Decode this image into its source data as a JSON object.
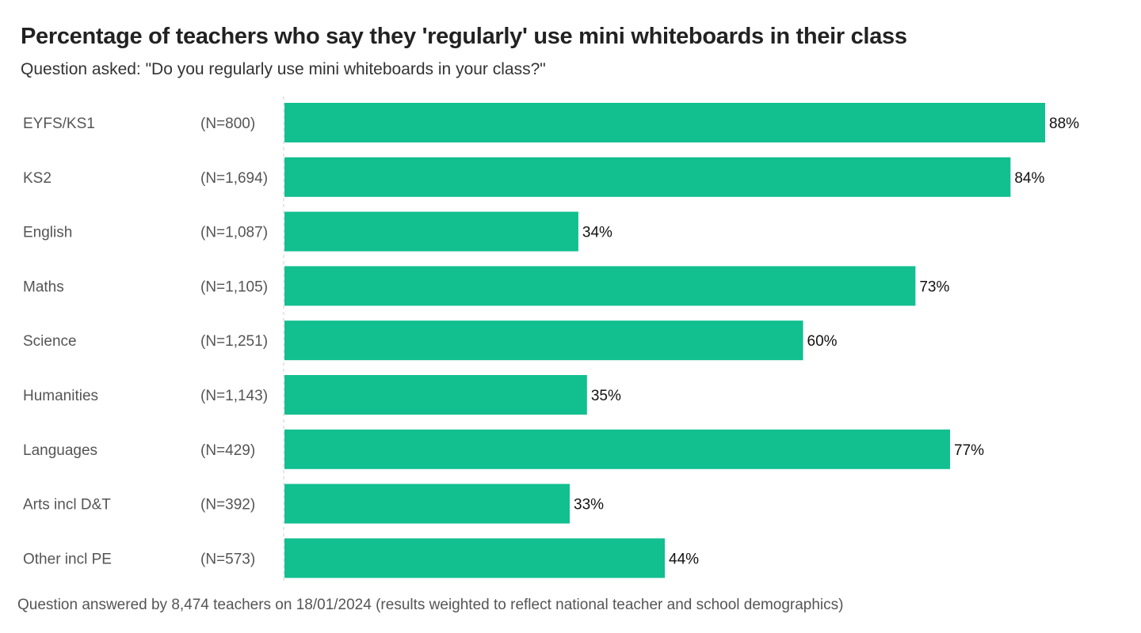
{
  "chart_data": {
    "type": "bar",
    "orientation": "horizontal",
    "title": "Percentage of teachers who say they 'regularly' use mini whiteboards in their class",
    "subtitle": "Question asked: \"Do you regularly use mini whiteboards in your class?\"",
    "footer": "Question answered by 8,474 teachers on 18/01/2024 (results weighted to reflect national teacher and school demographics)",
    "categories": [
      "EYFS/KS1",
      "KS2",
      "English",
      "Maths",
      "Science",
      "Humanities",
      "Languages",
      "Arts incl D&T",
      "Other incl PE"
    ],
    "sample_sizes": [
      "(N=800)",
      "(N=1,694)",
      "(N=1,087)",
      "(N=1,105)",
      "(N=1,251)",
      "(N=1,143)",
      "(N=429)",
      "(N=392)",
      "(N=573)"
    ],
    "values": [
      88,
      84,
      34,
      73,
      60,
      35,
      77,
      33,
      44
    ],
    "value_labels": [
      "88%",
      "84%",
      "34%",
      "73%",
      "60%",
      "35%",
      "77%",
      "33%",
      "44%"
    ],
    "xlim": [
      0,
      100
    ],
    "grid": false,
    "bar_color": "#12bf8f"
  }
}
